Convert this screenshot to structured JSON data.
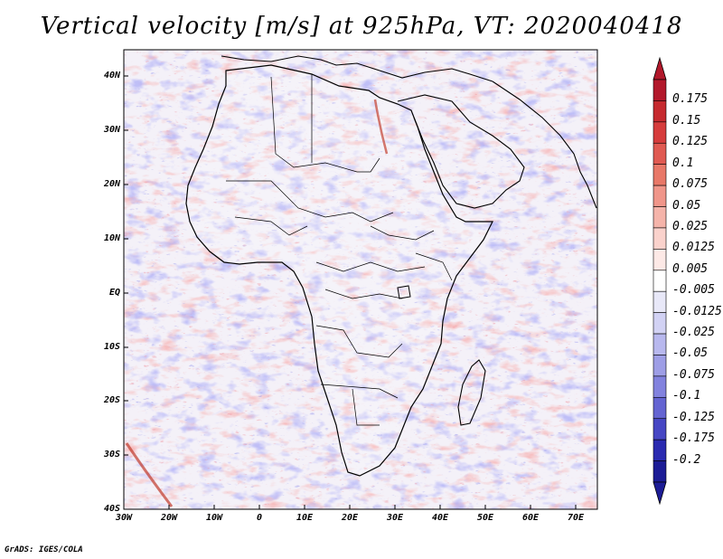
{
  "title": "Vertical velocity [m/s] at 925hPa, VT: 2020040418",
  "credit": "GrADS: IGES/COLA",
  "chart_data": {
    "type": "heatmap",
    "variable": "Vertical velocity",
    "units": "m/s",
    "level": "925hPa",
    "valid_time": "2020040418",
    "lon_range": [
      -30,
      75
    ],
    "lat_range": [
      -40,
      45
    ],
    "x_ticks": [
      "30W",
      "20W",
      "10W",
      "0",
      "10E",
      "20E",
      "30E",
      "40E",
      "50E",
      "60E",
      "70E"
    ],
    "y_ticks": [
      "40N",
      "30N",
      "20N",
      "10N",
      "EQ",
      "10S",
      "20S",
      "30S",
      "40S"
    ],
    "colorbar_labels": [
      "0.175",
      "0.15",
      "0.125",
      "0.1",
      "0.075",
      "0.05",
      "0.025",
      "0.0125",
      "0.005",
      "-0.005",
      "-0.0125",
      "-0.025",
      "-0.05",
      "-0.075",
      "-0.1",
      "-0.125",
      "-0.175",
      "-0.2"
    ],
    "colorbar_colors": [
      "#b2182b",
      "#c62a2f",
      "#d63c3c",
      "#e05a52",
      "#e87868",
      "#f0968a",
      "#f5b4aa",
      "#fad2cc",
      "#fde9e6",
      "#ffffff",
      "#e8e8f8",
      "#d2d2f4",
      "#b8b8ee",
      "#9e9ee6",
      "#8282de",
      "#6464d2",
      "#4646c4",
      "#2a2ab0",
      "#1c1c96"
    ]
  },
  "colors": {
    "land_outline": "#000000",
    "frame": "#000000"
  }
}
